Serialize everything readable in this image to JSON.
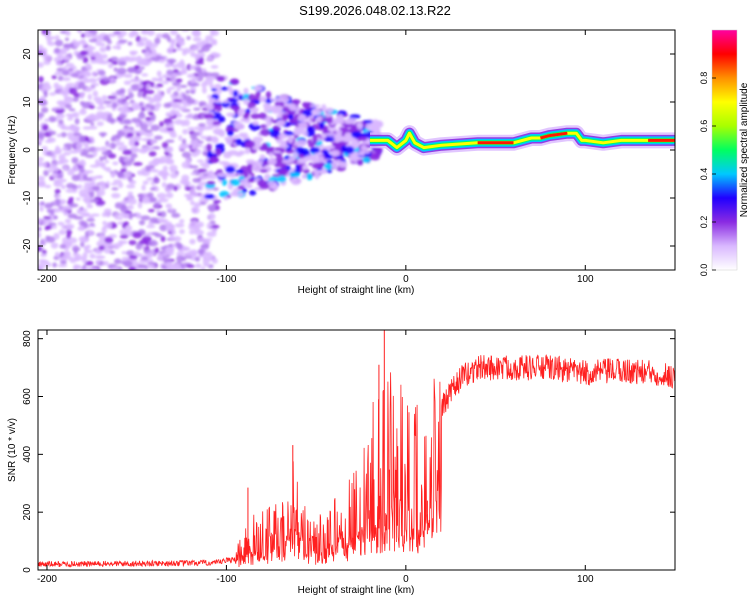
{
  "title": "S199.2026.048.02.13.R22",
  "chart_data": [
    {
      "type": "heatmap",
      "name": "spectrogram",
      "xlabel": "Height of straight line (km)",
      "ylabel": "Frequency (Hz)",
      "xlim": [
        -205,
        150
      ],
      "ylim": [
        -25,
        25
      ],
      "xticks": [
        -200,
        -100,
        0,
        100
      ],
      "yticks": [
        -20,
        -10,
        0,
        10,
        20
      ],
      "colorbar": {
        "label": "Normalized spectral amplitude",
        "range": [
          0,
          1
        ],
        "ticks": [
          0.0,
          0.2,
          0.4,
          0.6,
          0.8
        ],
        "tick_labels": [
          "0.0",
          "0.2",
          "0.4",
          "0.6",
          "0.8"
        ],
        "colors": [
          "#ffffff",
          "#d9b8ff",
          "#8a2be2",
          "#2000ff",
          "#00c8ff",
          "#00ff60",
          "#a8ff00",
          "#ffff00",
          "#ff9000",
          "#ff0000",
          "#ff00a0"
        ]
      },
      "ridge_line": {
        "x": [
          -20,
          -10,
          -5,
          0,
          2,
          5,
          10,
          20,
          40,
          60,
          70,
          75,
          80,
          90,
          95,
          98,
          100,
          110,
          120,
          135,
          150
        ],
        "y": [
          2,
          2,
          0.5,
          2,
          3.5,
          1.5,
          0.5,
          1,
          1.5,
          1.5,
          2.5,
          2.5,
          3,
          3.5,
          3.5,
          2,
          2,
          1.5,
          2,
          2,
          2
        ]
      },
      "series": [
        {
          "name": "noise",
          "x_range": [
            -205,
            -105
          ],
          "f_range": [
            -25,
            25
          ]
        },
        {
          "name": "transition",
          "x_range": [
            -110,
            -15
          ],
          "f_range": [
            -13,
            15
          ]
        }
      ]
    },
    {
      "type": "line",
      "name": "snr",
      "xlabel": "Height of straight line (km)",
      "ylabel": "SNR (10 * v/v)",
      "xlim": [
        -205,
        150
      ],
      "ylim": [
        0,
        830
      ],
      "xticks": [
        -200,
        -100,
        0,
        100
      ],
      "yticks": [
        0,
        200,
        400,
        600,
        800
      ],
      "color": "#ff2020",
      "envelope": {
        "x": [
          -205,
          -150,
          -105,
          -95,
          -88,
          -80,
          -70,
          -62,
          -55,
          -45,
          -35,
          -28,
          -22,
          -18,
          -15,
          -10,
          -5,
          0,
          5,
          10,
          12,
          15,
          20,
          30,
          40,
          60,
          80,
          100,
          120,
          140,
          150
        ],
        "y": [
          20,
          22,
          25,
          40,
          110,
          120,
          150,
          230,
          110,
          120,
          170,
          210,
          280,
          350,
          360,
          390,
          440,
          380,
          360,
          300,
          310,
          450,
          560,
          660,
          700,
          700,
          700,
          680,
          690,
          680,
          670
        ]
      },
      "spikes": [
        {
          "x": -88,
          "y": 285
        },
        {
          "x": -63,
          "y": 432
        },
        {
          "x": -15,
          "y": 710
        },
        {
          "x": -12,
          "y": 830
        },
        {
          "x": 12,
          "y": 240
        }
      ]
    }
  ]
}
